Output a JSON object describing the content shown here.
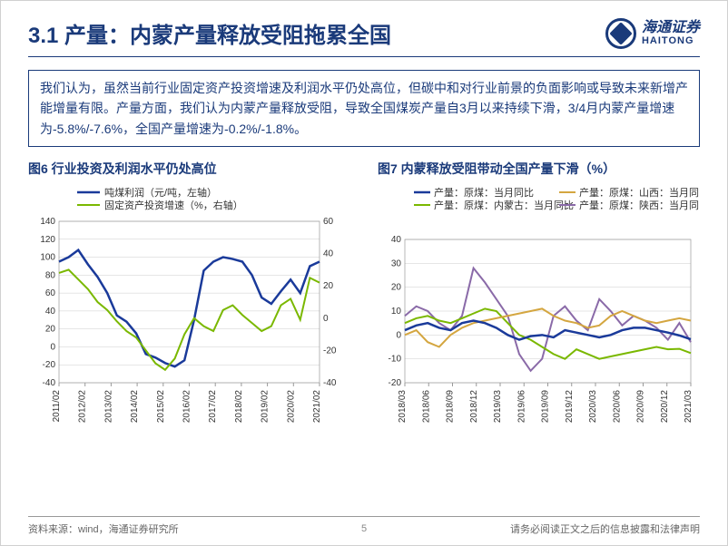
{
  "header": {
    "title": "3.1 产量：内蒙产量释放受阻拖累全国",
    "logo_cn": "海通证券",
    "logo_en": "HAITONG"
  },
  "description": "我们认为，虽然当前行业固定资产投资增速及利润水平仍处高位，但碳中和对行业前景的负面影响或导致未来新增产能增量有限。产量方面，我们认为内蒙产量释放受阻，导致全国煤炭产量自3月以来持续下滑，3/4月内蒙产量增速为-5.8%/-7.6%，全国产量增速为-0.2%/-1.8%。",
  "chart6": {
    "title": "图6 行业投资及利润水平仍处高位",
    "type": "line-dual-axis",
    "background_color": "#ffffff",
    "grid_color": "#cccccc",
    "legend": [
      {
        "label": "吨煤利润（元/吨，左轴）",
        "color": "#1a3a9a",
        "width": 2.5
      },
      {
        "label": "固定资产投资增速（%，右轴）",
        "color": "#7ab800",
        "width": 2
      }
    ],
    "y_left": {
      "min": -40,
      "max": 140,
      "step": 20
    },
    "y_right": {
      "min": -40,
      "max": 60,
      "step": 20
    },
    "x_labels": [
      "2011/02",
      "2012/02",
      "2013/02",
      "2014/02",
      "2015/02",
      "2016/02",
      "2017/02",
      "2018/02",
      "2019/02",
      "2020/02",
      "2021/02"
    ],
    "series": {
      "profit": {
        "color": "#1a3a9a",
        "y_axis": "left",
        "values": [
          95,
          100,
          108,
          92,
          78,
          60,
          35,
          28,
          15,
          -8,
          -12,
          -18,
          -22,
          -15,
          30,
          85,
          95,
          100,
          98,
          95,
          80,
          55,
          48,
          62,
          75,
          60,
          90,
          95
        ]
      },
      "investment": {
        "color": "#7ab800",
        "y_axis": "right",
        "values": [
          28,
          30,
          24,
          18,
          10,
          5,
          -2,
          -8,
          -12,
          -20,
          -28,
          -32,
          -25,
          -10,
          0,
          -5,
          -8,
          5,
          8,
          2,
          -3,
          -8,
          -5,
          8,
          12,
          -1,
          25,
          22
        ]
      }
    }
  },
  "chart7": {
    "title": "图7 内蒙释放受阻带动全国产量下滑（%）",
    "type": "line",
    "background_color": "#ffffff",
    "grid_color": "#cccccc",
    "legend": [
      {
        "label": "产量：原煤：当月同比",
        "color": "#1a3a9a",
        "width": 2.5
      },
      {
        "label": "产量：原煤：山西：当月同比",
        "color": "#d4a640",
        "width": 2
      },
      {
        "label": "产量：原煤：内蒙古：当月同比",
        "color": "#7ab800",
        "width": 2
      },
      {
        "label": "产量：原煤：陕西：当月同比",
        "color": "#8a6aa8",
        "width": 2
      }
    ],
    "y": {
      "min": -20,
      "max": 40,
      "step": 10
    },
    "x_labels": [
      "2018/03",
      "2018/06",
      "2018/09",
      "2018/12",
      "2019/03",
      "2019/06",
      "2019/09",
      "2019/12",
      "2020/03",
      "2020/06",
      "2020/09",
      "2020/12",
      "2021/03"
    ],
    "series": {
      "national": {
        "color": "#1a3a9a",
        "values": [
          2,
          4,
          5,
          3,
          2,
          5,
          6,
          5,
          3,
          0,
          -2,
          -0.5,
          0,
          -1,
          2,
          1,
          0,
          -1,
          0,
          2,
          3,
          3,
          2,
          1,
          -0.2,
          -1.8
        ]
      },
      "shanxi": {
        "color": "#d4a640",
        "values": [
          0,
          2,
          -3,
          -5,
          0,
          3,
          5,
          6,
          7,
          8,
          9,
          10,
          11,
          8,
          6,
          5,
          3,
          4,
          8,
          10,
          8,
          6,
          5,
          6,
          7,
          6
        ]
      },
      "neimeng": {
        "color": "#7ab800",
        "values": [
          5,
          7,
          8,
          6,
          5,
          7,
          9,
          11,
          10,
          5,
          0,
          -2,
          -5,
          -8,
          -10,
          -6,
          -8,
          -10,
          -9,
          -8,
          -7,
          -6,
          -5,
          -6,
          -5.8,
          -7.6
        ]
      },
      "shaanxi": {
        "color": "#8a6aa8",
        "values": [
          8,
          12,
          10,
          5,
          2,
          8,
          28,
          22,
          15,
          8,
          -8,
          -15,
          -10,
          8,
          12,
          6,
          2,
          15,
          10,
          4,
          8,
          6,
          3,
          -2,
          5,
          -3
        ]
      }
    }
  },
  "footer": {
    "source": "资料来源：wind，海通证券研究所",
    "page": "5",
    "disclaimer": "请务必阅读正文之后的信息披露和法律声明"
  }
}
